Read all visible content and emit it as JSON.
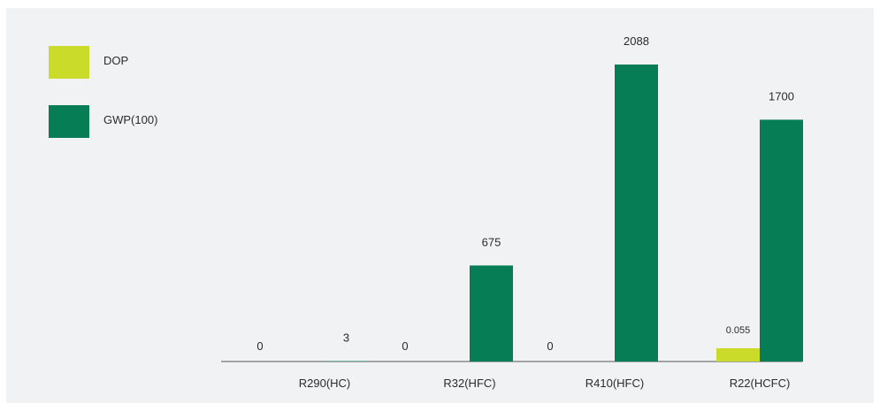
{
  "colors": {
    "background": "#f1f2f3",
    "dop": "#cadb2a",
    "gwp": "#077d56",
    "axis": "#555555",
    "text": "#2b2b2b"
  },
  "chart_data": {
    "type": "bar",
    "title": "",
    "xlabel": "",
    "ylabel": "",
    "categories": [
      "R290(HC)",
      "R32(HFC)",
      "R410(HFC)",
      "R22(HCFC)"
    ],
    "series": [
      {
        "name": "DOP",
        "values": [
          0,
          0,
          0,
          0.055
        ],
        "labels": [
          "0",
          "0",
          "0",
          "0.055"
        ],
        "color": "#cadb2a"
      },
      {
        "name": "GWP(100)",
        "values": [
          3,
          675,
          2088,
          1700
        ],
        "labels": [
          "3",
          "675",
          "2088",
          "1700"
        ],
        "color": "#077d56"
      }
    ],
    "ylim": [
      0,
      2088
    ],
    "grid": false,
    "legend": "top-left",
    "y_axis_visible": false
  }
}
